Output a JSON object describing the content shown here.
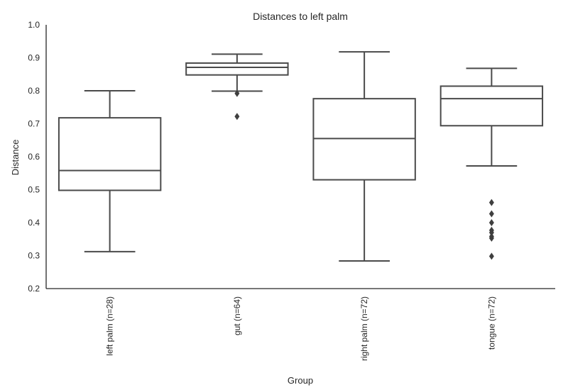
{
  "chart_data": {
    "type": "box",
    "title": "Distances to left palm",
    "xlabel": "Group",
    "ylabel": "Distance",
    "ylim": [
      0.2,
      1.0
    ],
    "yticks": [
      "0.2",
      "0.3",
      "0.4",
      "0.5",
      "0.6",
      "0.7",
      "0.8",
      "0.9",
      "1.0"
    ],
    "grid": false,
    "box_color": "#4a4a4a",
    "background": "#ffffff",
    "categories": [
      "left palm (n=28)",
      "gut (n=64)",
      "right palm (n=72)",
      "tongue (n=72)"
    ],
    "boxes": [
      {
        "whisker_low": 0.312,
        "q1": 0.498,
        "median": 0.558,
        "q3": 0.718,
        "whisker_high": 0.8,
        "outliers": []
      },
      {
        "whisker_low": 0.799,
        "q1": 0.848,
        "median": 0.871,
        "q3": 0.884,
        "whisker_high": 0.911,
        "outliers": [
          0.792,
          0.722
        ]
      },
      {
        "whisker_low": 0.284,
        "q1": 0.53,
        "median": 0.655,
        "q3": 0.776,
        "whisker_high": 0.918,
        "outliers": []
      },
      {
        "whisker_low": 0.572,
        "q1": 0.694,
        "median": 0.776,
        "q3": 0.814,
        "whisker_high": 0.868,
        "outliers": [
          0.461,
          0.427,
          0.4,
          0.377,
          0.37,
          0.358,
          0.353,
          0.298
        ]
      }
    ]
  }
}
